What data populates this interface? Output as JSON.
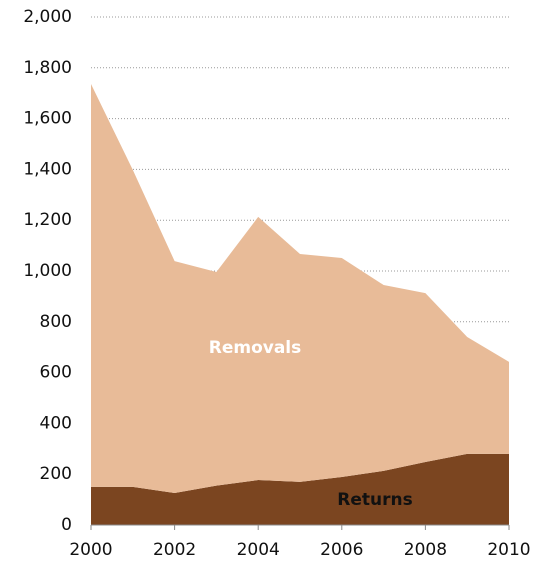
{
  "chart_data": {
    "type": "stacked-area",
    "x": [
      2000,
      2001,
      2002,
      2003,
      2004,
      2005,
      2006,
      2007,
      2008,
      2009,
      2010
    ],
    "series": [
      {
        "name": "Removals",
        "color": "#7b4520",
        "values": [
          150,
          150,
          126,
          155,
          177,
          170,
          189,
          213,
          248,
          280,
          280
        ]
      },
      {
        "name": "Returns",
        "color": "#e8bb98",
        "values": [
          1586,
          1248,
          913,
          841,
          1036,
          897,
          862,
          732,
          665,
          460,
          362
        ]
      }
    ],
    "xlim": [
      2000,
      2010
    ],
    "xticks": [
      2000,
      2002,
      2004,
      2006,
      2008,
      2010
    ],
    "ylim": [
      0,
      2000
    ],
    "yticks": [
      0,
      200,
      400,
      600,
      800,
      {
        "value": 1000,
        "label": "1,000"
      },
      {
        "value": 1200,
        "label": "1,200"
      },
      {
        "value": 1400,
        "label": "1,400"
      },
      {
        "value": 1600,
        "label": "1,600"
      },
      {
        "value": 1800,
        "label": "1,800"
      },
      {
        "value": 2000,
        "label": "2,000"
      }
    ],
    "grid": true
  }
}
